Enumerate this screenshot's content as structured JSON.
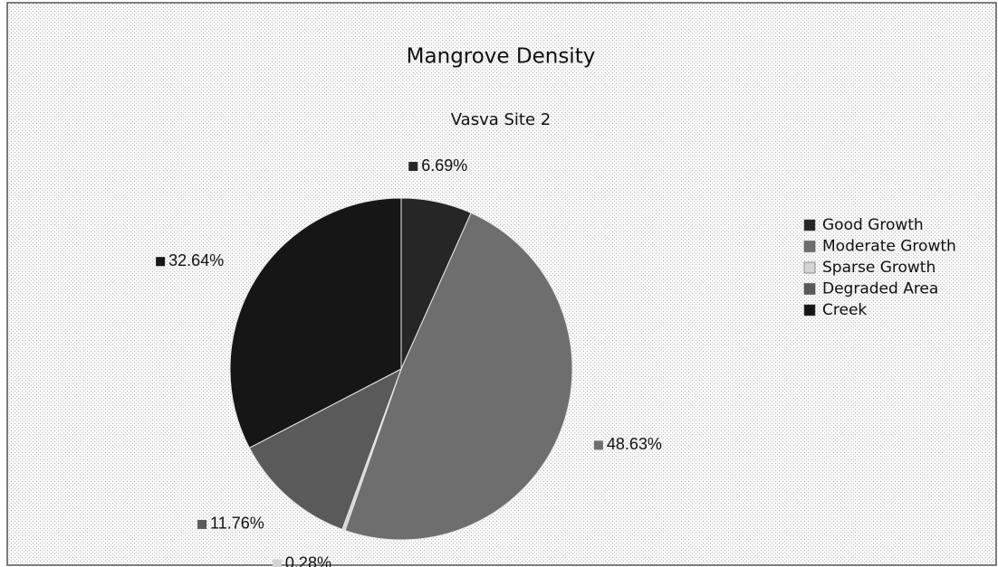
{
  "chart_data": {
    "type": "pie",
    "title": "Mangrove Density",
    "subtitle": "Vasva Site 2",
    "categories": [
      "Good Growth",
      "Moderate Growth",
      "Sparse Growth",
      "Degraded Area",
      "Creek"
    ],
    "values": [
      6.69,
      48.63,
      0.28,
      11.76,
      32.64
    ],
    "value_labels": [
      "6.69%",
      "48.63%",
      "0.28%",
      "11.76%",
      "32.64%"
    ],
    "colors": [
      "#262626",
      "#6e6e6e",
      "#d4d4d4",
      "#5a5a5a",
      "#161616"
    ],
    "legend": "right"
  }
}
